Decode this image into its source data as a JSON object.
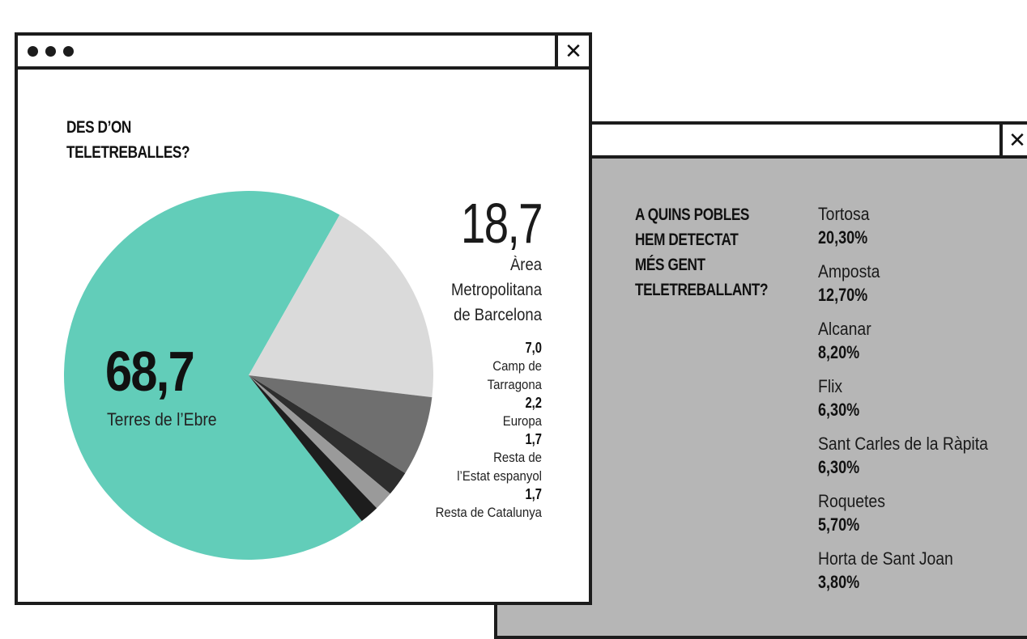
{
  "back_window": {
    "question": [
      "A QUINS POBLES",
      "HEM DETECTAT",
      "MÉS GENT",
      "TELETREBALLANT?"
    ],
    "towns": [
      {
        "name": "Tortosa",
        "pct": "20,30%"
      },
      {
        "name": "Amposta",
        "pct": "12,70%"
      },
      {
        "name": "Alcanar",
        "pct": "8,20%"
      },
      {
        "name": "Flix",
        "pct": "6,30%"
      },
      {
        "name": "Sant Carles de la Ràpita",
        "pct": "6,30%"
      },
      {
        "name": "Roquetes",
        "pct": "5,70%"
      },
      {
        "name": "Horta de Sant Joan",
        "pct": "3,80%"
      }
    ],
    "close_glyph": "✕"
  },
  "front_window": {
    "question": [
      "DES D’ON",
      "TELETREBALLES?"
    ],
    "close_glyph": "✕",
    "main_value": "68,7",
    "main_label": "Terres de l’Ebre",
    "second_value": "18,7",
    "second_label": [
      "Àrea",
      "Metropolitana",
      "de Barcelona"
    ],
    "small_labels": [
      {
        "value": "7,0",
        "label": [
          "Camp de",
          "Tarragona"
        ]
      },
      {
        "value": "2,2",
        "label": [
          "Europa"
        ]
      },
      {
        "value": "1,7",
        "label": [
          "Resta de",
          "l’Estat espanyol"
        ]
      },
      {
        "value": "1,7",
        "label": [
          "Resta de Catalunya"
        ]
      }
    ]
  },
  "chart_data": [
    {
      "type": "pie",
      "title": "DES D’ON TELETREBALLES?",
      "categories": [
        "Terres de l’Ebre",
        "Àrea Metropolitana de Barcelona",
        "Camp de Tarragona",
        "Europa",
        "Resta de l’Estat espanyol",
        "Resta de Catalunya"
      ],
      "values": [
        68.7,
        18.7,
        7.0,
        2.2,
        1.7,
        1.7
      ],
      "colors": [
        "#62cdb9",
        "#dadada",
        "#6f6f6f",
        "#2e2e2e",
        "#9a9a9a",
        "#1d1d1d"
      ]
    },
    {
      "type": "table",
      "title": "A QUINS POBLES HEM DETECTAT MÉS GENT TELETREBALLANT?",
      "categories": [
        "Tortosa",
        "Amposta",
        "Alcanar",
        "Flix",
        "Sant Carles de la Ràpita",
        "Roquetes",
        "Horta de Sant Joan"
      ],
      "values": [
        20.3,
        12.7,
        8.2,
        6.3,
        6.3,
        5.7,
        3.8
      ]
    }
  ]
}
